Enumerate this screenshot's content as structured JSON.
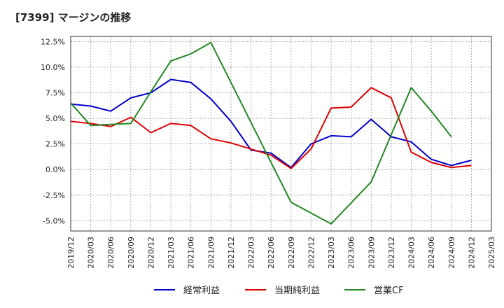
{
  "title": "[7399]  マージンの推移",
  "chart_data": {
    "type": "line",
    "x": [
      "2019/12",
      "2020/03",
      "2020/06",
      "2020/09",
      "2020/12",
      "2021/03",
      "2021/06",
      "2021/09",
      "2021/12",
      "2022/03",
      "2022/06",
      "2022/09",
      "2022/12",
      "2023/03",
      "2023/06",
      "2023/09",
      "2023/12",
      "2024/03",
      "2024/06",
      "2024/09",
      "2024/12",
      "2025/03"
    ],
    "y_ticks": [
      "12.5%",
      "10.0%",
      "7.5%",
      "5.0%",
      "2.5%",
      "0.0%",
      "-2.5%",
      "-5.0%"
    ],
    "y_tick_values": [
      12.5,
      10.0,
      7.5,
      5.0,
      2.5,
      0.0,
      -2.5,
      -5.0
    ],
    "ylim": [
      -6.0,
      13.0
    ],
    "grid": true,
    "legend_position": "bottom",
    "series": [
      {
        "name": "経常利益",
        "color": "#0000cc",
        "values": [
          6.4,
          6.2,
          5.7,
          7.0,
          7.5,
          8.8,
          8.5,
          6.9,
          4.7,
          1.9,
          1.6,
          0.2,
          2.5,
          3.3,
          3.2,
          4.9,
          3.2,
          2.7,
          1.0,
          0.4,
          0.9,
          null
        ]
      },
      {
        "name": "当期純利益",
        "color": "#dd0000",
        "values": [
          4.7,
          4.5,
          4.2,
          5.1,
          3.6,
          4.5,
          4.3,
          3.0,
          2.6,
          2.0,
          1.4,
          0.1,
          2.0,
          6.0,
          6.1,
          8.0,
          7.0,
          1.7,
          0.7,
          0.2,
          0.4,
          null
        ]
      },
      {
        "name": "営業CF",
        "color": "#228822",
        "values": [
          6.5,
          4.3,
          4.4,
          4.5,
          7.6,
          10.6,
          11.3,
          12.4,
          null,
          null,
          null,
          -3.2,
          null,
          -5.3,
          null,
          -1.2,
          null,
          8.0,
          5.7,
          3.2,
          null,
          null
        ]
      }
    ]
  }
}
